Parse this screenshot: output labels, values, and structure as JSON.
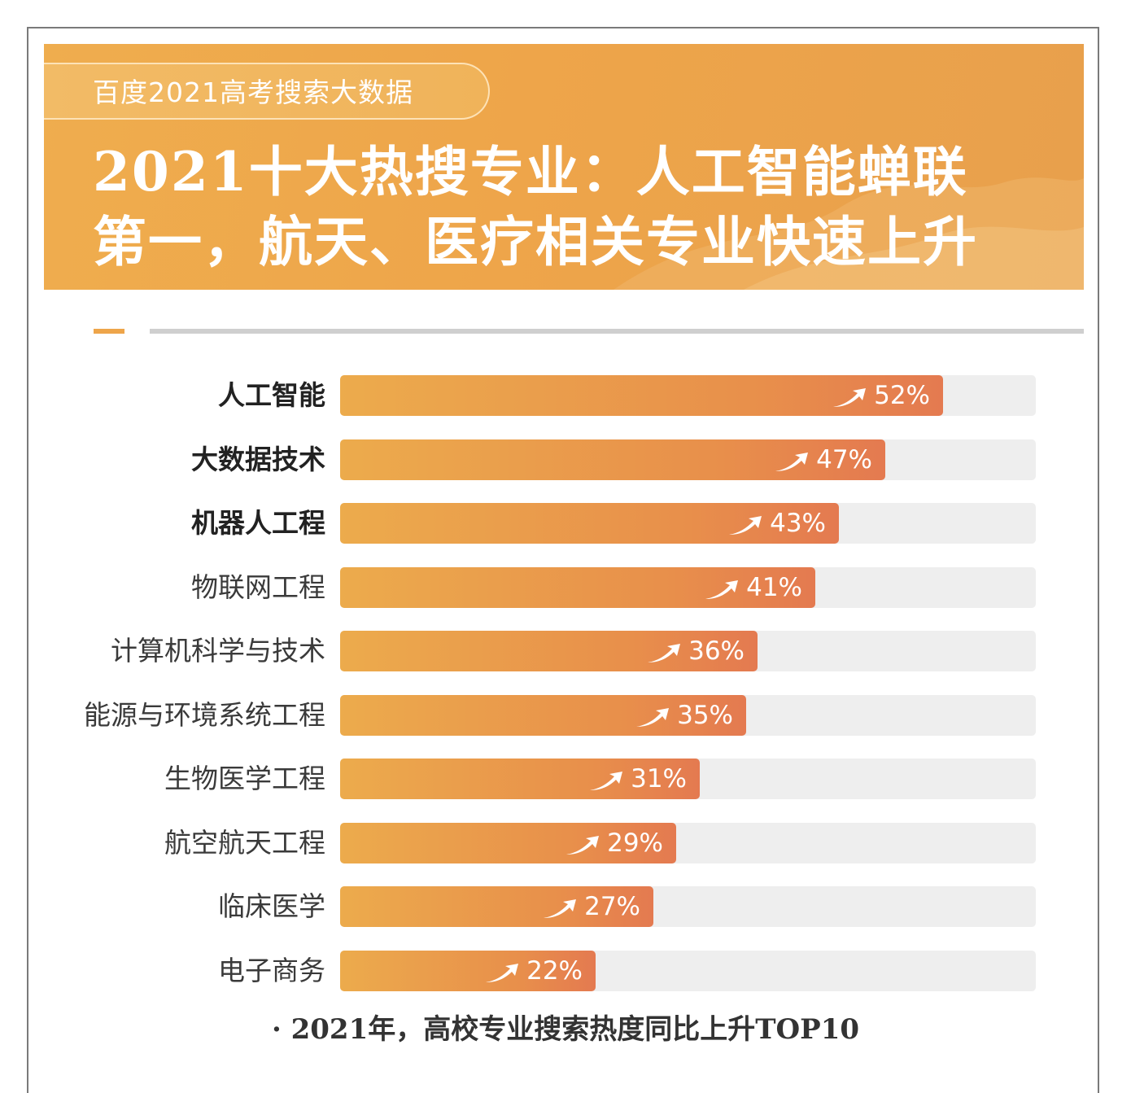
{
  "header": {
    "tag": "百度2021高考搜索大数据",
    "headline_line1": "2021十大热搜专业：人工智能蝉联",
    "headline_line2": "第一，航天、医疗相关专业快速上升"
  },
  "colors": {
    "banner": "#eea54a",
    "bar_start": "#ecab4c",
    "bar_end": "#e47a50",
    "track": "#eeeeee"
  },
  "chart_data": {
    "type": "bar",
    "orientation": "horizontal",
    "categories": [
      "人工智能",
      "大数据技术",
      "机器人工程",
      "物联网工程",
      "计算机科学与技术",
      "能源与环境系统工程",
      "生物医学工程",
      "航空航天工程",
      "临床医学",
      "电子商务"
    ],
    "values": [
      52,
      47,
      43,
      41,
      36,
      35,
      31,
      29,
      27,
      22
    ],
    "value_labels": [
      "52%",
      "47%",
      "43%",
      "41%",
      "36%",
      "35%",
      "31%",
      "29%",
      "27%",
      "22%"
    ],
    "bold_categories": [
      "人工智能",
      "大数据技术",
      "机器人工程"
    ],
    "xlim": [
      0,
      60
    ],
    "value_icon": "trend-up-arrow-icon",
    "caption": "· 2021年，高校专业搜索热度同比上升TOP10"
  }
}
